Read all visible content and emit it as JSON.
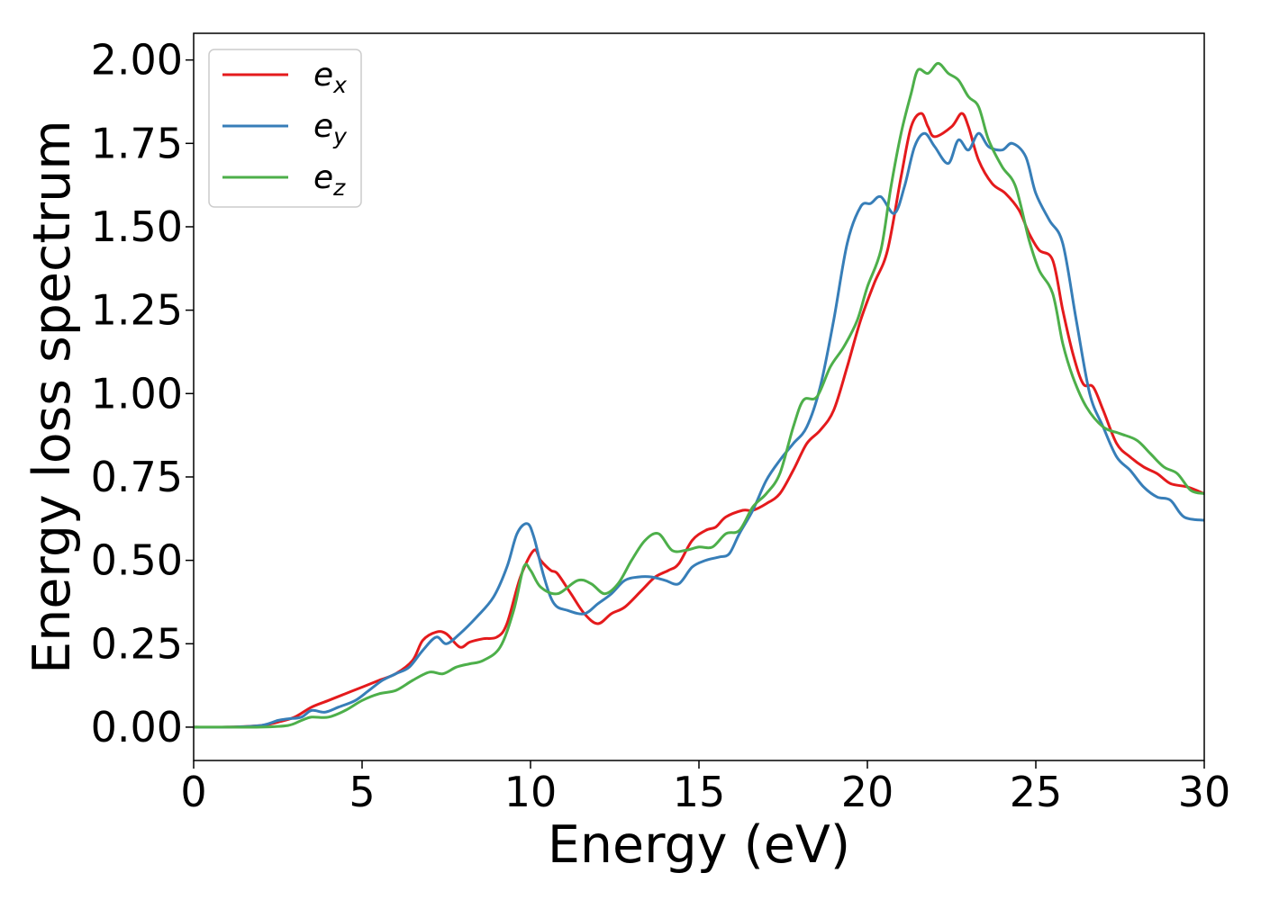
{
  "chart_data": {
    "type": "line",
    "title": "",
    "xlabel": "Energy (eV)",
    "ylabel": "Energy loss spectrum",
    "xlim": [
      0,
      30
    ],
    "ylim": [
      -0.1,
      2.08
    ],
    "xticks": [
      0,
      5,
      10,
      15,
      20,
      25,
      30
    ],
    "xtick_labels": [
      "0",
      "5",
      "10",
      "15",
      "20",
      "25",
      "30"
    ],
    "yticks": [
      0.0,
      0.25,
      0.5,
      0.75,
      1.0,
      1.25,
      1.5,
      1.75,
      2.0
    ],
    "ytick_labels": [
      "0.00",
      "0.25",
      "0.50",
      "0.75",
      "1.00",
      "1.25",
      "1.50",
      "1.75",
      "2.00"
    ],
    "grid": false,
    "legend_position": "top-left",
    "series": [
      {
        "name_base": "e",
        "name_sub": "x",
        "color": "#e41a1c",
        "points": [
          [
            0,
            0
          ],
          [
            1,
            0
          ],
          [
            2,
            0.005
          ],
          [
            2.5,
            0.015
          ],
          [
            3,
            0.03
          ],
          [
            3.5,
            0.06
          ],
          [
            4,
            0.08
          ],
          [
            4.5,
            0.1
          ],
          [
            5,
            0.12
          ],
          [
            5.5,
            0.14
          ],
          [
            6,
            0.16
          ],
          [
            6.5,
            0.2
          ],
          [
            6.8,
            0.26
          ],
          [
            7.2,
            0.285
          ],
          [
            7.5,
            0.28
          ],
          [
            7.9,
            0.24
          ],
          [
            8.2,
            0.255
          ],
          [
            8.6,
            0.265
          ],
          [
            9,
            0.27
          ],
          [
            9.3,
            0.31
          ],
          [
            9.7,
            0.45
          ],
          [
            10.1,
            0.53
          ],
          [
            10.3,
            0.5
          ],
          [
            10.6,
            0.47
          ],
          [
            10.8,
            0.46
          ],
          [
            11.2,
            0.4
          ],
          [
            11.6,
            0.34
          ],
          [
            12,
            0.31
          ],
          [
            12.4,
            0.34
          ],
          [
            12.8,
            0.36
          ],
          [
            13.3,
            0.41
          ],
          [
            13.7,
            0.45
          ],
          [
            14.1,
            0.47
          ],
          [
            14.4,
            0.49
          ],
          [
            14.8,
            0.56
          ],
          [
            15.2,
            0.59
          ],
          [
            15.5,
            0.6
          ],
          [
            15.8,
            0.63
          ],
          [
            16.3,
            0.65
          ],
          [
            16.6,
            0.65
          ],
          [
            17,
            0.67
          ],
          [
            17.4,
            0.7
          ],
          [
            17.8,
            0.77
          ],
          [
            18.2,
            0.85
          ],
          [
            18.6,
            0.89
          ],
          [
            19,
            0.95
          ],
          [
            19.4,
            1.08
          ],
          [
            19.8,
            1.22
          ],
          [
            20.2,
            1.33
          ],
          [
            20.6,
            1.43
          ],
          [
            21,
            1.65
          ],
          [
            21.3,
            1.8
          ],
          [
            21.6,
            1.84
          ],
          [
            21.8,
            1.8
          ],
          [
            22,
            1.77
          ],
          [
            22.5,
            1.8
          ],
          [
            22.8,
            1.84
          ],
          [
            23,
            1.8
          ],
          [
            23.3,
            1.7
          ],
          [
            23.7,
            1.63
          ],
          [
            24.1,
            1.6
          ],
          [
            24.5,
            1.55
          ],
          [
            24.8,
            1.48
          ],
          [
            25.1,
            1.43
          ],
          [
            25.5,
            1.4
          ],
          [
            25.8,
            1.25
          ],
          [
            26.1,
            1.12
          ],
          [
            26.4,
            1.03
          ],
          [
            26.7,
            1.02
          ],
          [
            27,
            0.95
          ],
          [
            27.4,
            0.85
          ],
          [
            27.8,
            0.81
          ],
          [
            28.2,
            0.78
          ],
          [
            28.6,
            0.76
          ],
          [
            29,
            0.73
          ],
          [
            29.5,
            0.72
          ],
          [
            30,
            0.7
          ]
        ]
      },
      {
        "name_base": "e",
        "name_sub": "y",
        "color": "#377eb8",
        "points": [
          [
            0,
            0
          ],
          [
            1,
            0
          ],
          [
            2,
            0.005
          ],
          [
            2.5,
            0.02
          ],
          [
            2.8,
            0.025
          ],
          [
            3.2,
            0.03
          ],
          [
            3.5,
            0.05
          ],
          [
            3.9,
            0.045
          ],
          [
            4.3,
            0.06
          ],
          [
            4.8,
            0.08
          ],
          [
            5.2,
            0.11
          ],
          [
            5.6,
            0.14
          ],
          [
            6,
            0.16
          ],
          [
            6.4,
            0.18
          ],
          [
            6.8,
            0.23
          ],
          [
            7.2,
            0.27
          ],
          [
            7.5,
            0.25
          ],
          [
            7.9,
            0.28
          ],
          [
            8.4,
            0.33
          ],
          [
            8.9,
            0.39
          ],
          [
            9.3,
            0.48
          ],
          [
            9.6,
            0.58
          ],
          [
            9.9,
            0.61
          ],
          [
            10.1,
            0.57
          ],
          [
            10.4,
            0.45
          ],
          [
            10.7,
            0.37
          ],
          [
            11.1,
            0.35
          ],
          [
            11.6,
            0.34
          ],
          [
            12,
            0.37
          ],
          [
            12.4,
            0.4
          ],
          [
            12.8,
            0.44
          ],
          [
            13.2,
            0.45
          ],
          [
            13.6,
            0.45
          ],
          [
            14,
            0.44
          ],
          [
            14.4,
            0.43
          ],
          [
            14.8,
            0.48
          ],
          [
            15.2,
            0.5
          ],
          [
            15.6,
            0.51
          ],
          [
            15.9,
            0.52
          ],
          [
            16.2,
            0.58
          ],
          [
            16.6,
            0.65
          ],
          [
            17,
            0.74
          ],
          [
            17.4,
            0.8
          ],
          [
            17.8,
            0.85
          ],
          [
            18.2,
            0.9
          ],
          [
            18.6,
            1.02
          ],
          [
            19,
            1.22
          ],
          [
            19.4,
            1.45
          ],
          [
            19.8,
            1.56
          ],
          [
            20.1,
            1.57
          ],
          [
            20.4,
            1.59
          ],
          [
            20.8,
            1.54
          ],
          [
            21.1,
            1.62
          ],
          [
            21.4,
            1.74
          ],
          [
            21.7,
            1.78
          ],
          [
            22,
            1.74
          ],
          [
            22.4,
            1.69
          ],
          [
            22.7,
            1.76
          ],
          [
            23,
            1.73
          ],
          [
            23.3,
            1.78
          ],
          [
            23.6,
            1.74
          ],
          [
            24,
            1.73
          ],
          [
            24.3,
            1.75
          ],
          [
            24.7,
            1.71
          ],
          [
            25,
            1.6
          ],
          [
            25.4,
            1.52
          ],
          [
            25.8,
            1.45
          ],
          [
            26.2,
            1.22
          ],
          [
            26.6,
            1.0
          ],
          [
            27,
            0.9
          ],
          [
            27.4,
            0.81
          ],
          [
            27.8,
            0.77
          ],
          [
            28.2,
            0.72
          ],
          [
            28.6,
            0.69
          ],
          [
            29,
            0.68
          ],
          [
            29.4,
            0.63
          ],
          [
            30,
            0.62
          ]
        ]
      },
      {
        "name_base": "e",
        "name_sub": "z",
        "color": "#4daf4a",
        "points": [
          [
            0,
            0
          ],
          [
            1,
            0
          ],
          [
            2,
            0
          ],
          [
            2.8,
            0.005
          ],
          [
            3.2,
            0.02
          ],
          [
            3.5,
            0.03
          ],
          [
            4,
            0.03
          ],
          [
            4.5,
            0.05
          ],
          [
            5,
            0.08
          ],
          [
            5.5,
            0.1
          ],
          [
            6,
            0.11
          ],
          [
            6.5,
            0.14
          ],
          [
            7,
            0.165
          ],
          [
            7.4,
            0.16
          ],
          [
            7.8,
            0.18
          ],
          [
            8.2,
            0.19
          ],
          [
            8.6,
            0.2
          ],
          [
            9.1,
            0.24
          ],
          [
            9.5,
            0.35
          ],
          [
            9.8,
            0.48
          ],
          [
            10,
            0.47
          ],
          [
            10.3,
            0.42
          ],
          [
            10.8,
            0.4
          ],
          [
            11.4,
            0.44
          ],
          [
            11.8,
            0.43
          ],
          [
            12.2,
            0.4
          ],
          [
            12.6,
            0.43
          ],
          [
            13,
            0.5
          ],
          [
            13.4,
            0.56
          ],
          [
            13.8,
            0.58
          ],
          [
            14.2,
            0.53
          ],
          [
            14.6,
            0.53
          ],
          [
            15,
            0.54
          ],
          [
            15.4,
            0.54
          ],
          [
            15.8,
            0.58
          ],
          [
            16.2,
            0.59
          ],
          [
            16.6,
            0.66
          ],
          [
            17,
            0.7
          ],
          [
            17.4,
            0.76
          ],
          [
            17.8,
            0.9
          ],
          [
            18.1,
            0.98
          ],
          [
            18.5,
            0.99
          ],
          [
            18.9,
            1.08
          ],
          [
            19.3,
            1.14
          ],
          [
            19.7,
            1.22
          ],
          [
            20,
            1.32
          ],
          [
            20.4,
            1.43
          ],
          [
            20.7,
            1.62
          ],
          [
            21,
            1.78
          ],
          [
            21.3,
            1.9
          ],
          [
            21.5,
            1.97
          ],
          [
            21.8,
            1.96
          ],
          [
            22.1,
            1.99
          ],
          [
            22.4,
            1.96
          ],
          [
            22.7,
            1.94
          ],
          [
            23,
            1.89
          ],
          [
            23.3,
            1.86
          ],
          [
            23.6,
            1.76
          ],
          [
            24,
            1.68
          ],
          [
            24.4,
            1.62
          ],
          [
            24.8,
            1.46
          ],
          [
            25.1,
            1.37
          ],
          [
            25.5,
            1.3
          ],
          [
            25.8,
            1.15
          ],
          [
            26.1,
            1.05
          ],
          [
            26.5,
            0.96
          ],
          [
            27,
            0.9
          ],
          [
            27.5,
            0.88
          ],
          [
            28,
            0.86
          ],
          [
            28.4,
            0.82
          ],
          [
            28.8,
            0.78
          ],
          [
            29.2,
            0.76
          ],
          [
            29.6,
            0.71
          ],
          [
            30,
            0.7
          ]
        ]
      }
    ]
  }
}
